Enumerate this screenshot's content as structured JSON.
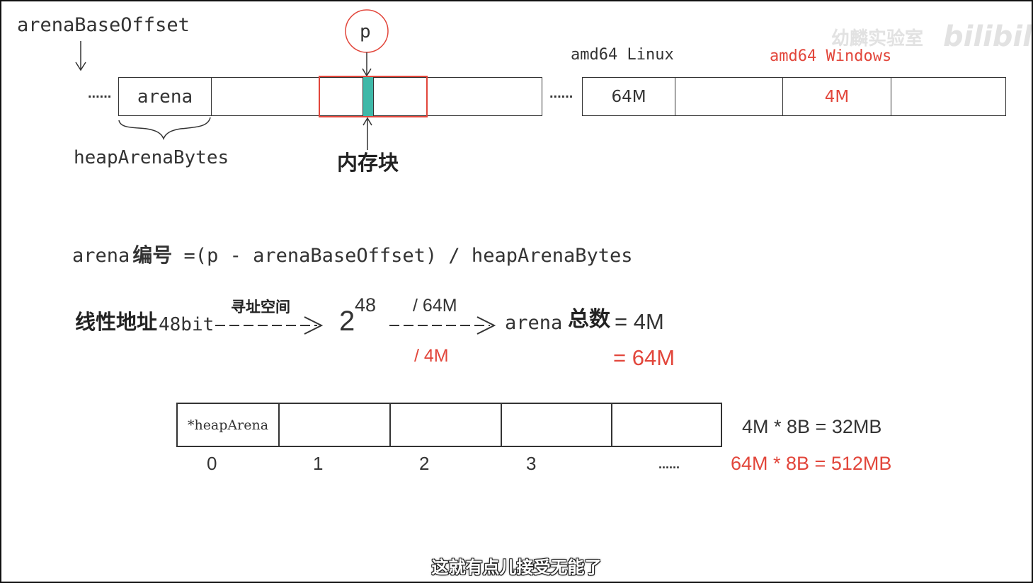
{
  "watermark": {
    "channel": "幼麟实验室",
    "logo": "bilibili"
  },
  "top": {
    "base_label": "arenaBaseOffset",
    "dots_left": "......",
    "arena_cell": "arena",
    "pointer": "p",
    "brace_label": "heapArenaBytes",
    "block_label": "内存块",
    "dots_mid": "......",
    "linux_label": "amd64 Linux",
    "windows_label": "amd64 Windows",
    "cell_64m": "64M",
    "cell_4m": "4M"
  },
  "formula": {
    "lhs": "arena",
    "lhs_cn": "编号",
    "rhs": " =(p - arenaBaseOffset) / heapArenaBytes"
  },
  "calc": {
    "linear": "线性地址",
    "bits": "48bit",
    "address_space": "寻址空间",
    "base": "2",
    "exp": "48",
    "div_linux": "/ 64M",
    "div_windows": "/ 4M",
    "arena": "arena",
    "total_cn": "总数",
    "eq_linux": "= 4M",
    "eq_windows": "= 64M"
  },
  "array": {
    "first_cell": "*heapArena",
    "indices": [
      "0",
      "1",
      "2",
      "3",
      "......"
    ],
    "size_linux": "4M * 8B = 32MB",
    "size_windows": "64M * 8B = 512MB"
  },
  "subtitle": "这就有点儿接受无能了",
  "colors": {
    "red": "#e2463b",
    "teal": "#3fb8a8",
    "ink": "#333333"
  }
}
